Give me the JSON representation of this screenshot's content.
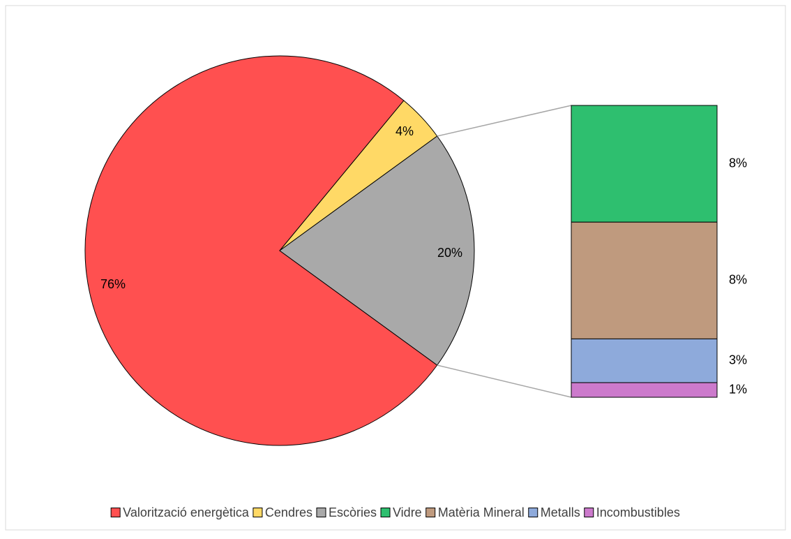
{
  "chart_data": {
    "type": "pie",
    "subtype": "bar-of-pie",
    "pie": {
      "slices": [
        {
          "name": "Valorització energètica",
          "value": 76,
          "label": "76%",
          "color": "#ff5050"
        },
        {
          "name": "Cendres",
          "value": 4,
          "label": "4%",
          "color": "#ffd966"
        },
        {
          "name": "Escòries",
          "value": 20,
          "label": "20%",
          "color": "#a9a9a9"
        }
      ]
    },
    "bar": {
      "segments": [
        {
          "name": "Vidre",
          "value": 8,
          "label": "8%",
          "color": "#2ebf6f"
        },
        {
          "name": "Matèria Mineral",
          "value": 8,
          "label": "8%",
          "color": "#bf9a7e"
        },
        {
          "name": "Metalls",
          "value": 3,
          "label": "3%",
          "color": "#8eaadb"
        },
        {
          "name": "Incombustibles",
          "value": 1,
          "label": "1%",
          "color": "#cc7acc"
        }
      ]
    },
    "legend": {
      "position": "bottom",
      "entries": [
        {
          "name": "Valorització energètica",
          "color": "#ff5050"
        },
        {
          "name": "Cendres",
          "color": "#ffd966"
        },
        {
          "name": "Escòries",
          "color": "#a9a9a9"
        },
        {
          "name": "Vidre",
          "color": "#2ebf6f"
        },
        {
          "name": "Matèria Mineral",
          "color": "#bf9a7e"
        },
        {
          "name": "Metalls",
          "color": "#8eaadb"
        },
        {
          "name": "Incombustibles",
          "color": "#cc7acc"
        }
      ]
    }
  }
}
